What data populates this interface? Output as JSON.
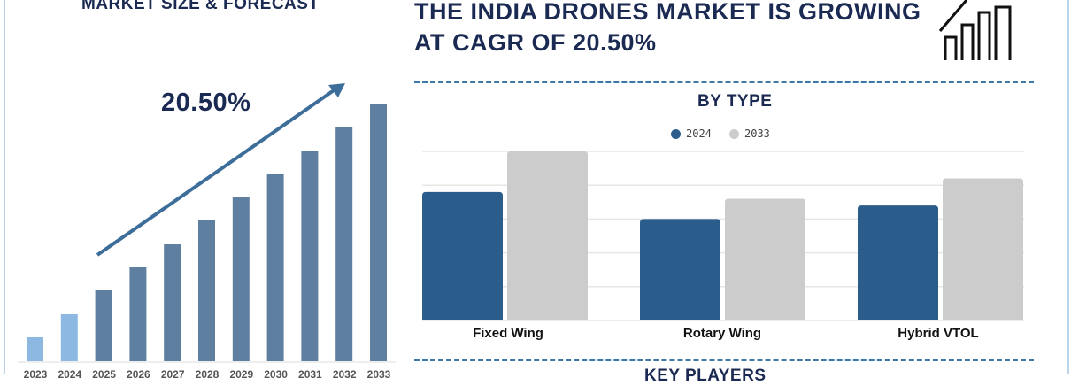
{
  "left_title": "MARKET SIZE & FORECAST",
  "main_title_line1": "THE INDIA DRONES MARKET IS GROWING",
  "main_title_line2": "AT CAGR OF 20.50%",
  "cagr_label": "20.50%",
  "key_players_title": "KEY PLAYERS",
  "colors": {
    "dark_bar": "#5f7fa0",
    "light_bar": "#8db8e2",
    "series2024": "#2a5d8c",
    "series2033": "#cccccc",
    "arrow": "#3d6e9a",
    "title": "#1b2a52"
  },
  "chart_data": [
    {
      "type": "bar",
      "title": "MARKET SIZE & FORECAST",
      "categories": [
        "2023",
        "2024",
        "2025",
        "2026",
        "2027",
        "2028",
        "2029",
        "2030",
        "2031",
        "2032",
        "2033"
      ],
      "values": [
        27,
        53,
        80,
        106,
        132,
        159,
        185,
        211,
        238,
        264,
        291
      ],
      "highlighted": [
        "2023",
        "2024"
      ],
      "annotation": "20.50%",
      "xlabel": "",
      "ylabel": "",
      "grid": false
    },
    {
      "type": "bar",
      "title": "BY TYPE",
      "categories": [
        "Fixed Wing",
        "Rotary Wing",
        "Hybrid VTOL"
      ],
      "series": [
        {
          "name": "2024",
          "values": [
            3.8,
            3.0,
            3.4
          ]
        },
        {
          "name": "2033",
          "values": [
            5.0,
            3.6,
            4.2
          ]
        }
      ],
      "ylim": [
        0,
        5
      ],
      "grid": true,
      "legend": "top-center"
    }
  ]
}
